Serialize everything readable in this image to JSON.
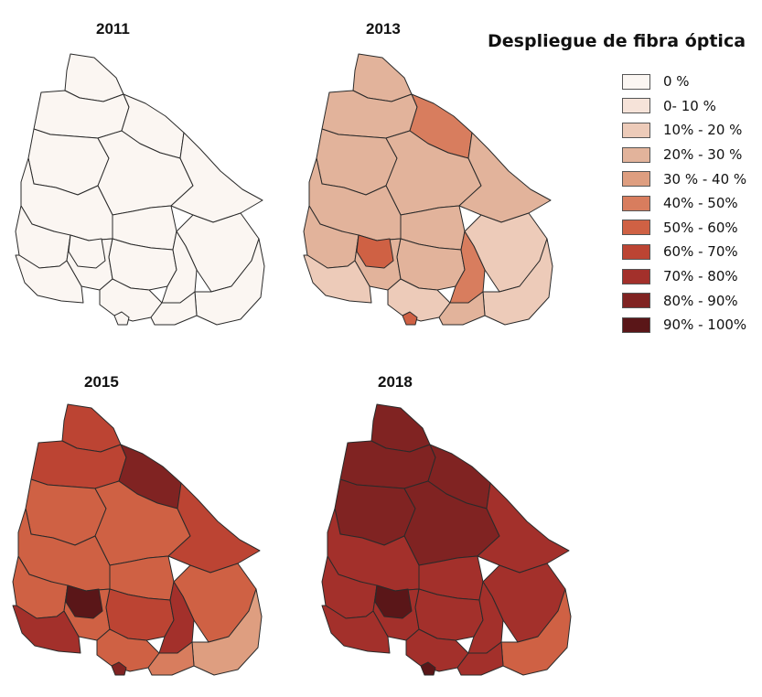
{
  "legend": {
    "title": "Despliegue de fibra óptica",
    "classes": [
      {
        "label": "0 %",
        "color": "#FBF6F2"
      },
      {
        "label": "0- 10 %",
        "color": "#F6E3D9"
      },
      {
        "label": "10% - 20 %",
        "color": "#EDCBB9"
      },
      {
        "label": "20% - 30 %",
        "color": "#E2B39B"
      },
      {
        "label": "30 % - 40 %",
        "color": "#DE9E80"
      },
      {
        "label": "40% - 50%",
        "color": "#D87D5E"
      },
      {
        "label": "50% - 60%",
        "color": "#CF6144"
      },
      {
        "label": "60% - 70%",
        "color": "#BC4433"
      },
      {
        "label": "70% - 80%",
        "color": "#A3302B"
      },
      {
        "label": "80% - 90%",
        "color": "#802322"
      },
      {
        "label": "90% - 100%",
        "color": "#5A1618"
      }
    ]
  },
  "maps": [
    {
      "year": "2011",
      "region_classes": [
        0,
        0,
        0,
        0,
        0,
        0,
        0,
        0,
        0,
        0,
        0,
        0,
        0,
        0,
        0,
        0,
        0,
        0,
        0
      ]
    },
    {
      "year": "2013",
      "region_classes": [
        3,
        3,
        3,
        5,
        3,
        3,
        3,
        3,
        2,
        3,
        3,
        2,
        6,
        3,
        5,
        2,
        2,
        3,
        6
      ]
    },
    {
      "year": "2015",
      "region_classes": [
        7,
        7,
        6,
        9,
        6,
        7,
        6,
        6,
        6,
        6,
        6,
        8,
        10,
        7,
        8,
        4,
        6,
        5,
        9
      ]
    },
    {
      "year": "2018",
      "region_classes": [
        9,
        9,
        9,
        9,
        9,
        8,
        8,
        8,
        8,
        8,
        8,
        8,
        10,
        8,
        8,
        6,
        8,
        8,
        10
      ]
    }
  ]
}
